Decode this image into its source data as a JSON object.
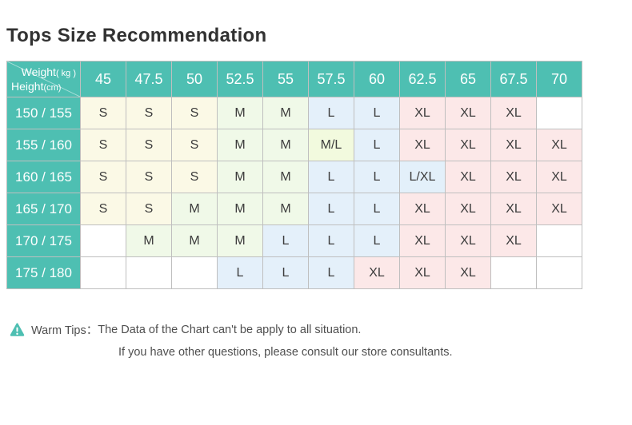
{
  "page": {
    "title": "Tops Size Recommendation"
  },
  "chart_data": {
    "type": "table",
    "title": "Tops Size Recommendation",
    "corner": {
      "weight_label": "Weight",
      "weight_unit": "( kg )",
      "height_label": "Height",
      "height_unit": "(cm)"
    },
    "weight_categories_kg": [
      "45",
      "47.5",
      "50",
      "52.5",
      "55",
      "57.5",
      "60",
      "62.5",
      "65",
      "67.5",
      "70"
    ],
    "rows": [
      {
        "height_range_cm": "150 / 155",
        "sizes": [
          "S",
          "S",
          "S",
          "M",
          "M",
          "L",
          "L",
          "XL",
          "XL",
          "XL",
          ""
        ]
      },
      {
        "height_range_cm": "155 / 160",
        "sizes": [
          "S",
          "S",
          "S",
          "M",
          "M",
          "M/L",
          "L",
          "XL",
          "XL",
          "XL",
          "XL"
        ]
      },
      {
        "height_range_cm": "160 / 165",
        "sizes": [
          "S",
          "S",
          "S",
          "M",
          "M",
          "L",
          "L",
          "L/XL",
          "XL",
          "XL",
          "XL"
        ]
      },
      {
        "height_range_cm": "165 / 170",
        "sizes": [
          "S",
          "S",
          "M",
          "M",
          "M",
          "L",
          "L",
          "XL",
          "XL",
          "XL",
          "XL"
        ]
      },
      {
        "height_range_cm": "170 / 175",
        "sizes": [
          "",
          "M",
          "M",
          "M",
          "L",
          "L",
          "L",
          "XL",
          "XL",
          "XL",
          ""
        ]
      },
      {
        "height_range_cm": "175 / 180",
        "sizes": [
          "",
          "",
          "",
          "L",
          "L",
          "L",
          "XL",
          "XL",
          "XL",
          "",
          ""
        ]
      }
    ]
  },
  "size_colors": {
    "S": "#fbf9e6",
    "M": "#f0f9e8",
    "M/L": "#f2fade",
    "L": "#e4f0fa",
    "L/XL": "#e3f0fa",
    "XL": "#fce8e8",
    "": "#ffffff"
  },
  "theme": {
    "header_teal": "#4ebfb2",
    "border_color": "#bfbfbf",
    "title_color": "#323232",
    "cell_text_color": "#3c3c3c",
    "tips_text_color": "#4f4f4f"
  },
  "tips": {
    "icon": "warning-triangle-icon",
    "label": "Warm Tips：",
    "line1": "The Data of the Chart can't be apply to all situation.",
    "line2": "If you have other questions, please consult our store consultants."
  }
}
